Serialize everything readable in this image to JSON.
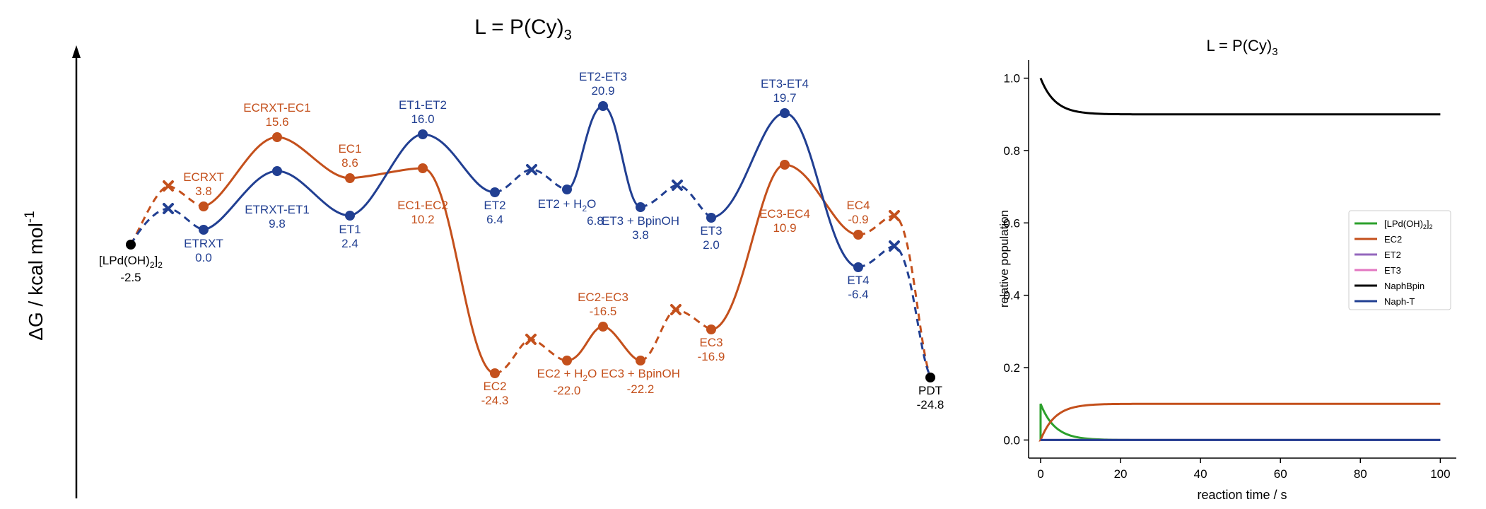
{
  "colors": {
    "orange": "#C4501C",
    "blue": "#213F92",
    "black": "#000000",
    "green": "#2CA02C",
    "purple": "#9467BD",
    "pink": "#E377C2"
  },
  "chart_data": [
    {
      "type": "energy-profile",
      "title": "L = P(Cy)3",
      "ylabel": "ΔG / kcal mol-1",
      "nodes": [
        {
          "id": "start",
          "label": "[LPd(OH)2]2",
          "value": "-2.5",
          "y": -2.5,
          "color": "black"
        },
        {
          "id": "ecrxt",
          "label": "ECRXT",
          "value": "3.8",
          "y": 3.8,
          "color": "orange"
        },
        {
          "id": "ecrxt_ec1",
          "label": "ECRXT-EC1",
          "value": "15.6",
          "y": 15.6,
          "color": "orange"
        },
        {
          "id": "ec1",
          "label": "EC1",
          "value": "8.6",
          "y": 8.6,
          "color": "orange"
        },
        {
          "id": "ec1_ec2",
          "label": "EC1-EC2",
          "value": "10.2",
          "y": 10.2,
          "color": "orange"
        },
        {
          "id": "ec2",
          "label": "EC2",
          "value": "-24.3",
          "y": -24.3,
          "color": "orange"
        },
        {
          "id": "ec2_h2o",
          "label": "EC2 + H2O",
          "value": "-22.0",
          "y": -22.0,
          "color": "orange"
        },
        {
          "id": "ec2_ec3",
          "label": "EC2-EC3",
          "value": "-16.5",
          "y": -16.5,
          "color": "orange"
        },
        {
          "id": "ec3_bpinoh",
          "label": "EC3 + BpinOH",
          "value": "-22.2",
          "y": -22.2,
          "color": "orange"
        },
        {
          "id": "ec3",
          "label": "EC3",
          "value": "-16.9",
          "y": -16.9,
          "color": "orange"
        },
        {
          "id": "ec3_ec4",
          "label": "EC3-EC4",
          "value": "10.9",
          "y": 10.9,
          "color": "orange"
        },
        {
          "id": "ec4",
          "label": "EC4",
          "value": "-0.9",
          "y": -0.9,
          "color": "orange"
        },
        {
          "id": "etrxt",
          "label": "ETRXT",
          "value": "0.0",
          "y": 0.0,
          "color": "blue"
        },
        {
          "id": "etrxt_et1",
          "label": "ETRXT-ET1",
          "value": "9.8",
          "y": 9.8,
          "color": "blue"
        },
        {
          "id": "et1",
          "label": "ET1",
          "value": "2.4",
          "y": 2.4,
          "color": "blue"
        },
        {
          "id": "et1_et2",
          "label": "ET1-ET2",
          "value": "16.0",
          "y": 16.0,
          "color": "blue"
        },
        {
          "id": "et2",
          "label": "ET2",
          "value": "6.4",
          "y": 6.4,
          "color": "blue"
        },
        {
          "id": "et2_h2o",
          "label": "ET2 + H2O",
          "value": "6.8",
          "y": 6.8,
          "color": "blue"
        },
        {
          "id": "et2_et3",
          "label": "ET2-ET3",
          "value": "20.9",
          "y": 20.9,
          "color": "blue"
        },
        {
          "id": "et3_bpinoh",
          "label": "ET3 + BpinOH",
          "value": "3.8",
          "y": 3.8,
          "color": "blue"
        },
        {
          "id": "et3",
          "label": "ET3",
          "value": "2.0",
          "y": 2.0,
          "color": "blue"
        },
        {
          "id": "et3_et4",
          "label": "ET3-ET4",
          "value": "19.7",
          "y": 19.7,
          "color": "blue"
        },
        {
          "id": "et4",
          "label": "ET4",
          "value": "-6.4",
          "y": -6.4,
          "color": "blue"
        },
        {
          "id": "pdt",
          "label": "PDT",
          "value": "-24.8",
          "y": -24.8,
          "color": "black"
        }
      ]
    },
    {
      "type": "line",
      "title": "L = P(Cy)3",
      "xlabel": "reaction time / s",
      "ylabel": "relative population",
      "xlim": [
        -3,
        104
      ],
      "ylim": [
        -0.05,
        1.05
      ],
      "xticks": [
        "0",
        "20",
        "40",
        "60",
        "80",
        "100"
      ],
      "yticks": [
        "0.0",
        "0.2",
        "0.4",
        "0.6",
        "0.8",
        "1.0"
      ],
      "legend_position": "right",
      "series": [
        {
          "name": "[LPd(OH)2]2",
          "color": "#2CA02C",
          "start": 0.1,
          "end": 0.0,
          "rate": 0.28
        },
        {
          "name": "EC2",
          "color": "#C4501C",
          "start": 0.0,
          "end": 0.1,
          "rate": 0.28
        },
        {
          "name": "ET2",
          "color": "#9467BD",
          "start": 0.0,
          "end": 0.0,
          "rate": 0.1
        },
        {
          "name": "ET3",
          "color": "#E377C2",
          "start": 0.0,
          "end": 0.0,
          "rate": 0.1
        },
        {
          "name": "NaphBpin",
          "color": "#000000",
          "start": 1.0,
          "end": 0.9,
          "rate": 0.28
        },
        {
          "name": "Naph-T",
          "color": "#213F92",
          "start": 0.0,
          "end": 0.0,
          "rate": 0.1
        }
      ]
    }
  ]
}
